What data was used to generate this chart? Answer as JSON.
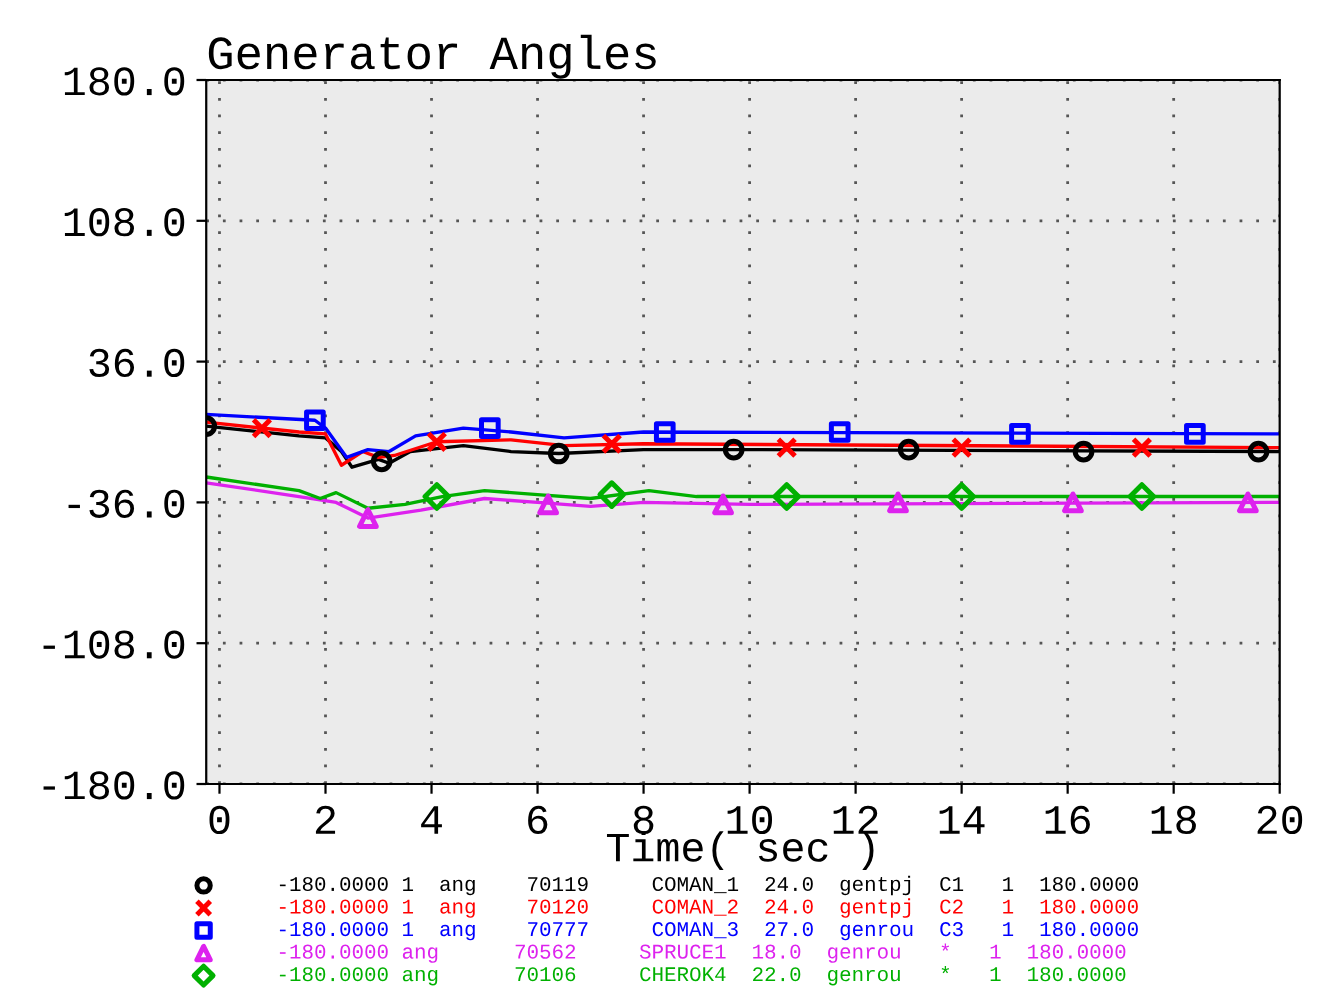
{
  "chart_data": {
    "type": "line",
    "title": "Generator Angles",
    "xlabel": "Time( sec )",
    "xlim": [
      -0.25,
      20
    ],
    "xticks": [
      0,
      2,
      4,
      6,
      8,
      10,
      12,
      14,
      16,
      18,
      20
    ],
    "ylim": [
      -180,
      180
    ],
    "yticks": [
      {
        "value": 180,
        "label": "180.0"
      },
      {
        "value": 108,
        "label": "108.0"
      },
      {
        "value": 36,
        "label": "36.0"
      },
      {
        "value": -36,
        "label": "-36.0"
      },
      {
        "value": -108,
        "label": "-108.0"
      },
      {
        "value": -180,
        "label": "-180.0"
      }
    ],
    "grid": true,
    "legend": "bottom",
    "line_style": "solid",
    "series": [
      {
        "color": "#000000",
        "x": [
          -0.25,
          1.5,
          2.0,
          2.3,
          2.5,
          3.0,
          3.2,
          3.6,
          4.6,
          5.5,
          6.4,
          8,
          10,
          20
        ],
        "values": [
          3,
          -2,
          -3,
          -10,
          -18,
          -14,
          -16,
          -10,
          -7,
          -10,
          -11,
          -9,
          -9,
          -10
        ]
      },
      {
        "color": "#ff0000",
        "x": [
          -0.25,
          1.5,
          2.0,
          2.3,
          2.7,
          3.0,
          3.3,
          4.1,
          5.5,
          6.5,
          8,
          20
        ],
        "values": [
          5,
          0,
          -1,
          -17,
          -10,
          -13,
          -12,
          -5,
          -4,
          -7,
          -6,
          -8
        ]
      },
      {
        "color": "#0000ff",
        "x": [
          -0.25,
          1.8,
          2.0,
          2.4,
          2.8,
          3.2,
          3.7,
          4.6,
          5.5,
          6.5,
          8,
          20
        ],
        "values": [
          9,
          6,
          2,
          -13,
          -9,
          -10,
          -2,
          2,
          0,
          -3,
          0,
          -1
        ]
      },
      {
        "color": "#dd22ee",
        "x": [
          -0.25,
          1.5,
          2.2,
          2.8,
          3.8,
          5,
          6,
          7,
          8,
          10,
          20
        ],
        "values": [
          -26,
          -33,
          -36,
          -44,
          -40,
          -34,
          -36,
          -38,
          -36,
          -37,
          -36
        ]
      },
      {
        "color": "#00b000",
        "x": [
          -0.25,
          1.5,
          1.9,
          2.2,
          2.8,
          3.5,
          4.2,
          5,
          6,
          7,
          8.1,
          9,
          20
        ],
        "values": [
          -23,
          -30,
          -34,
          -31,
          -39,
          -37,
          -33,
          -30,
          -32,
          -34,
          -30,
          -33,
          -33
        ]
      },
      {
        "type": "scatter",
        "name": "-180.0000 1  ang    70119     COMAN_1  24.0  gentpj  C1   1  180.0000",
        "color": "#000000",
        "marker": "circle",
        "x": [
          -0.25,
          3.06,
          6.4,
          9.7,
          13.0,
          16.3,
          19.6
        ],
        "values": [
          3,
          -15,
          -11,
          -9,
          -9,
          -10,
          -10
        ]
      },
      {
        "type": "scatter",
        "name": "-180.0000 1  ang    70120     COMAN_2  24.0  gentpj  C2   1  180.0000",
        "color": "#ff0000",
        "marker": "cross",
        "x": [
          0.8,
          4.1,
          7.4,
          10.7,
          14.0,
          17.4
        ],
        "values": [
          2,
          -5,
          -6,
          -8,
          -8,
          -8
        ]
      },
      {
        "type": "scatter",
        "name": "-180.0000 1  ang    70777     COMAN_3  27.0  genrou  C3   1  180.0000",
        "color": "#0000ff",
        "marker": "square",
        "x": [
          1.8,
          5.1,
          8.4,
          11.7,
          15.1,
          18.4
        ],
        "values": [
          6,
          2,
          0,
          0,
          -1,
          -1
        ]
      },
      {
        "type": "scatter",
        "name": "-180.0000 ang      70562     SPRUCE1  18.0  genrou   *   1  180.0000",
        "color": "#dd22ee",
        "marker": "triangle",
        "x": [
          2.8,
          6.2,
          9.5,
          12.8,
          16.1,
          19.4
        ],
        "values": [
          -44,
          -37,
          -37,
          -36,
          -36,
          -36
        ]
      },
      {
        "type": "scatter",
        "name": "-180.0000 ang      70106     CHEROK4  22.0  genrou   *   1  180.0000",
        "color": "#00b000",
        "marker": "diamond",
        "x": [
          4.1,
          7.4,
          10.7,
          14.0,
          17.4
        ],
        "values": [
          -33,
          -32,
          -33,
          -33,
          -33
        ]
      }
    ]
  }
}
